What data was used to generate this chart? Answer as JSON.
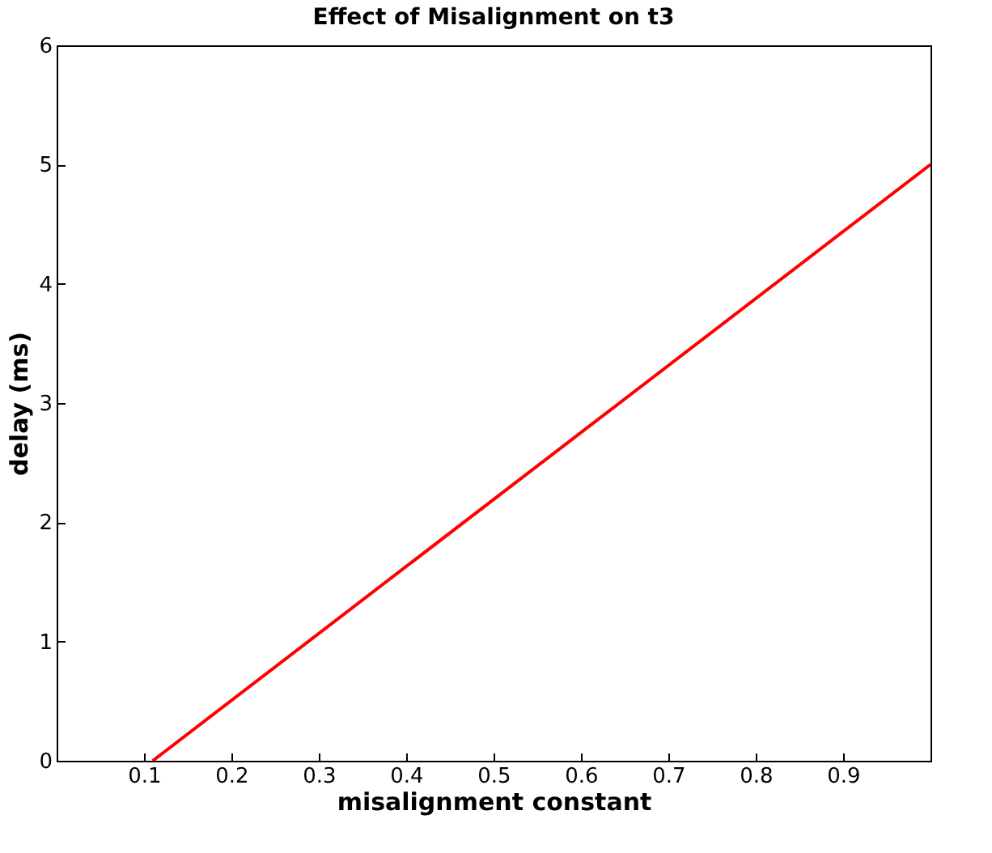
{
  "chart_data": {
    "type": "line",
    "title": "Effect of Misalignment on t3",
    "xlabel": "misalignment constant",
    "ylabel": "delay (ms)",
    "x": [
      0.11,
      1
    ],
    "series": [
      {
        "color": "#ff0000",
        "values": [
          0,
          5
        ]
      }
    ],
    "xlim": [
      0,
      1
    ],
    "xticks": [
      0.1,
      0.2,
      0.3,
      0.4,
      0.5,
      0.6,
      0.7,
      0.8,
      0.9
    ],
    "ylim": [
      0,
      6
    ],
    "yticks": [
      0,
      1,
      2,
      3,
      4,
      5,
      6
    ],
    "grid": false,
    "legend": false,
    "marker": "none",
    "line_style": "solid"
  }
}
